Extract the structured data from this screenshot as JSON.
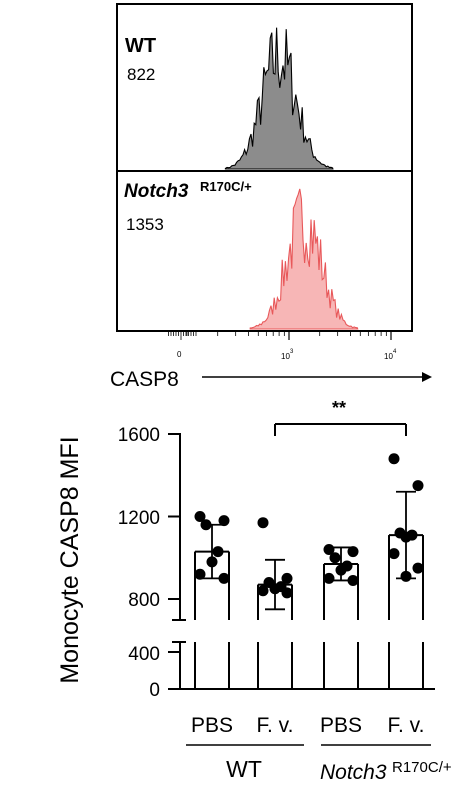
{
  "chart_data": [
    {
      "type": "histogram",
      "xlabel": "CASP8",
      "x_scale": "log",
      "x_ticks": [
        {
          "value": 0,
          "label": "0"
        },
        {
          "value": 1000,
          "label": "10",
          "exp": "3"
        },
        {
          "value": 10000,
          "label": "10",
          "exp": "4"
        }
      ],
      "panels": [
        {
          "name": "WT",
          "mfi": "822",
          "color": "#000000",
          "fill": "#8c8c8c",
          "peak": 800
        },
        {
          "name": "Notch3",
          "name_sup": "R170C/+",
          "mfi": "1353",
          "color": "#e8585a",
          "fill": "#f7b6b6",
          "peak": 1400
        }
      ]
    },
    {
      "type": "bar",
      "ylabel": "Monocyte CASP8 MFI",
      "y_ticks": [
        0,
        400,
        800,
        1200,
        1600
      ],
      "y_break": [
        500,
        700
      ],
      "ylim": [
        0,
        1650
      ],
      "categories": [
        "PBS",
        "F. v.",
        "PBS",
        "F. v."
      ],
      "groups": [
        {
          "label": "WT",
          "span": [
            0,
            1
          ]
        },
        {
          "label": "Notch3",
          "label_sup": "R170C/+",
          "span": [
            2,
            3
          ]
        }
      ],
      "bars": [
        {
          "mean": 1030,
          "sd": 130,
          "points": [
            1200,
            1180,
            1160,
            1030,
            980,
            920,
            900
          ]
        },
        {
          "mean": 870,
          "sd": 120,
          "points": [
            1170,
            900,
            880,
            860,
            850,
            840,
            830
          ]
        },
        {
          "mean": 970,
          "sd": 80,
          "points": [
            1040,
            1030,
            1000,
            960,
            940,
            900,
            890
          ]
        },
        {
          "mean": 1110,
          "sd": 210,
          "points": [
            1480,
            1350,
            1120,
            1110,
            1100,
            1020,
            950,
            910
          ]
        }
      ],
      "significance": {
        "from": 1,
        "to": 3,
        "label": "**"
      }
    }
  ]
}
